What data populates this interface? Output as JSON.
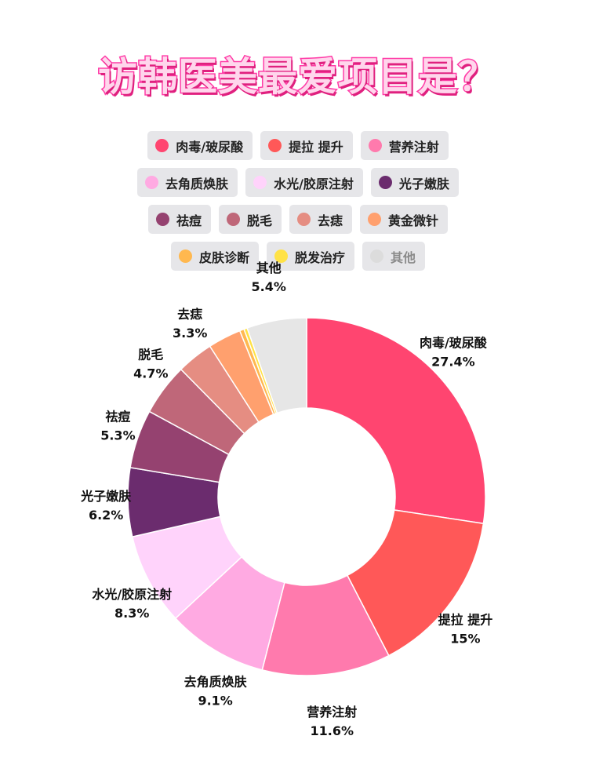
{
  "title": "访韩医美最爱项目是？",
  "chart_data": {
    "type": "pie",
    "donut": true,
    "legend_position": "top",
    "slices": [
      {
        "label": "肉毒/玻尿酸",
        "value": 27.4,
        "value_label": "27.4%",
        "color": "#ff4570"
      },
      {
        "label": "提拉 提升",
        "value": 15,
        "value_label": "15%",
        "color": "#ff5858"
      },
      {
        "label": "营养注射",
        "value": 11.6,
        "value_label": "11.6%",
        "color": "#ff7aad"
      },
      {
        "label": "去角质焕肤",
        "value": 9.1,
        "value_label": "9.1%",
        "color": "#ffaae2"
      },
      {
        "label": "水光/胶原注射",
        "value": 8.3,
        "value_label": "8.3%",
        "color": "#ffd3fb"
      },
      {
        "label": "光子嫩肤",
        "value": 6.2,
        "value_label": "6.2%",
        "color": "#6b2c6e"
      },
      {
        "label": "祛痘",
        "value": 5.3,
        "value_label": "5.3%",
        "color": "#954270"
      },
      {
        "label": "脱毛",
        "value": 4.7,
        "value_label": "4.7%",
        "color": "#bf6779"
      },
      {
        "label": "去痣",
        "value": 3.3,
        "value_label": "3.3%",
        "color": "#e58d82"
      },
      {
        "label": "黄金微针",
        "value": 3.0,
        "value_label": "",
        "color": "#ffa06e"
      },
      {
        "label": "皮肤诊断",
        "value": 0.4,
        "value_label": "",
        "color": "#ffb84f"
      },
      {
        "label": "脱发治疗",
        "value": 0.3,
        "value_label": "",
        "color": "#ffe246"
      },
      {
        "label": "其他",
        "value": 5.4,
        "value_label": "5.4%",
        "color": "#e6e6e6"
      }
    ]
  },
  "legend": {
    "rows": [
      [
        {
          "label": "肉毒/玻尿酸",
          "color": "#ff4570"
        },
        {
          "label": "提拉 提升",
          "color": "#ff5858"
        },
        {
          "label": "营养注射",
          "color": "#ff7aad"
        }
      ],
      [
        {
          "label": "去角质焕肤",
          "color": "#ffaae2"
        },
        {
          "label": "水光/胶原注射",
          "color": "#ffd3fb"
        },
        {
          "label": "光子嫩肤",
          "color": "#6b2c6e"
        }
      ],
      [
        {
          "label": "祛痘",
          "color": "#954270"
        },
        {
          "label": "脱毛",
          "color": "#bf6779"
        },
        {
          "label": "去痣",
          "color": "#e58d82"
        },
        {
          "label": "黄金微针",
          "color": "#ffa06e"
        }
      ],
      [
        {
          "label": "皮肤诊断",
          "color": "#ffb84f"
        },
        {
          "label": "脱发治疗",
          "color": "#ffe246"
        },
        {
          "label": "其他",
          "color": "#dcdcdc",
          "inactive": true
        }
      ]
    ]
  }
}
